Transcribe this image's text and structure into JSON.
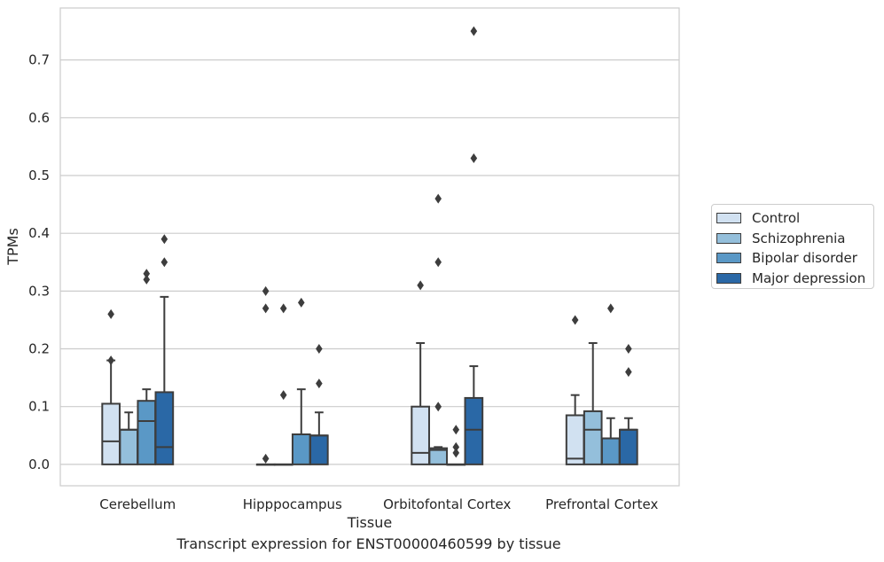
{
  "chart_data": {
    "type": "box",
    "xlabel": "Tissue",
    "ylabel": "TPMs",
    "caption": "Transcript expression for ENST00000460599 by tissue",
    "ylim": [
      -0.037,
      0.79
    ],
    "yticks": [
      "0.0",
      "0.1",
      "0.2",
      "0.3",
      "0.4",
      "0.5",
      "0.6",
      "0.7"
    ],
    "grid": true,
    "legend_position": "right",
    "categories": [
      "Cerebellum",
      "Hipppocampus",
      "Orbitofontal Cortex",
      "Prefrontal Cortex"
    ],
    "series": [
      {
        "name": "Control",
        "color": "#d1e1f1",
        "boxes": [
          {
            "q1": 0.0,
            "median": 0.04,
            "q3": 0.105,
            "whisker_low": 0.0,
            "whisker_high": 0.18,
            "outliers": [
              0.26,
              0.18
            ]
          },
          {
            "q1": 0.0,
            "median": 0.0,
            "q3": 0.0,
            "whisker_low": 0.0,
            "whisker_high": 0.0,
            "outliers": [
              0.3,
              0.27,
              0.01
            ]
          },
          {
            "q1": 0.0,
            "median": 0.02,
            "q3": 0.1,
            "whisker_low": 0.0,
            "whisker_high": 0.21,
            "outliers": [
              0.31
            ]
          },
          {
            "q1": 0.0,
            "median": 0.01,
            "q3": 0.085,
            "whisker_low": 0.0,
            "whisker_high": 0.12,
            "outliers": [
              0.25
            ]
          }
        ]
      },
      {
        "name": "Schizophrenia",
        "color": "#94bfdb",
        "boxes": [
          {
            "q1": 0.0,
            "median": 0.06,
            "q3": 0.06,
            "whisker_low": 0.0,
            "whisker_high": 0.09,
            "outliers": []
          },
          {
            "q1": 0.0,
            "median": 0.0,
            "q3": 0.0,
            "whisker_low": 0.0,
            "whisker_high": 0.0,
            "outliers": [
              0.27,
              0.12
            ]
          },
          {
            "q1": 0.0,
            "median": 0.025,
            "q3": 0.028,
            "whisker_low": 0.0,
            "whisker_high": 0.03,
            "outliers": [
              0.46,
              0.35,
              0.1
            ]
          },
          {
            "q1": 0.0,
            "median": 0.06,
            "q3": 0.092,
            "whisker_low": 0.0,
            "whisker_high": 0.21,
            "outliers": []
          }
        ]
      },
      {
        "name": "Bipolar disorder",
        "color": "#5a98c6",
        "boxes": [
          {
            "q1": 0.0,
            "median": 0.075,
            "q3": 0.11,
            "whisker_low": 0.0,
            "whisker_high": 0.13,
            "outliers": [
              0.33,
              0.32
            ]
          },
          {
            "q1": 0.0,
            "median": 0.052,
            "q3": 0.052,
            "whisker_low": 0.0,
            "whisker_high": 0.13,
            "outliers": [
              0.28
            ]
          },
          {
            "q1": 0.0,
            "median": 0.0,
            "q3": 0.0,
            "whisker_low": 0.0,
            "whisker_high": 0.0,
            "outliers": [
              0.06,
              0.03,
              0.02
            ]
          },
          {
            "q1": 0.0,
            "median": 0.045,
            "q3": 0.045,
            "whisker_low": 0.0,
            "whisker_high": 0.08,
            "outliers": [
              0.27
            ]
          }
        ]
      },
      {
        "name": "Major depression",
        "color": "#2a68a6",
        "boxes": [
          {
            "q1": 0.0,
            "median": 0.03,
            "q3": 0.125,
            "whisker_low": 0.0,
            "whisker_high": 0.29,
            "outliers": [
              0.39,
              0.35
            ]
          },
          {
            "q1": 0.0,
            "median": 0.05,
            "q3": 0.05,
            "whisker_low": 0.0,
            "whisker_high": 0.09,
            "outliers": [
              0.2,
              0.14
            ]
          },
          {
            "q1": 0.0,
            "median": 0.06,
            "q3": 0.115,
            "whisker_low": 0.0,
            "whisker_high": 0.17,
            "outliers": [
              0.75,
              0.53
            ]
          },
          {
            "q1": 0.0,
            "median": 0.06,
            "q3": 0.06,
            "whisker_low": 0.0,
            "whisker_high": 0.08,
            "outliers": [
              0.2,
              0.16
            ]
          }
        ]
      }
    ]
  }
}
